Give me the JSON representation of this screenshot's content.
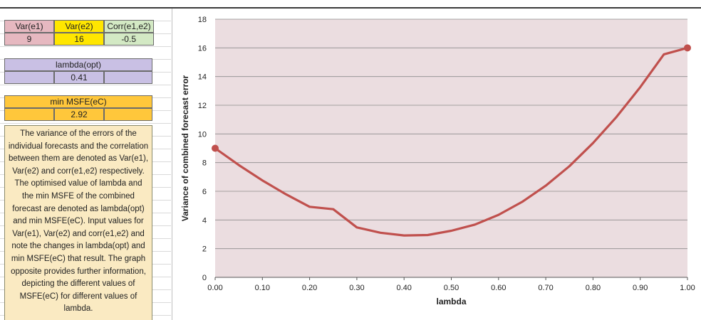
{
  "spreadsheet": {
    "var_e1": {
      "label": "Var(e1)",
      "value": "9"
    },
    "var_e2": {
      "label": "Var(e2)",
      "value": "16"
    },
    "corr": {
      "label": "Corr(e1,e2)",
      "value": "-0.5"
    },
    "lambda_opt": {
      "label": "lambda(opt)",
      "value": "0.41"
    },
    "min_msfe": {
      "label": "min MSFE(eC)",
      "value": "2.92"
    },
    "description": "The variance of the errors of the individual forecasts and the correlation between them are denoted as Var(e1), Var(e2) and corr(e1,e2) respectively. The optimised value of lambda and the min MSFE of the combined forecast are denoted as lambda(opt) and min MSFE(eC). Input values for Var(e1), Var(e2) and corr(e1,e2) and note the changes in lambda(opt) and min MSFE(eC) that result. The graph opposite provides further information, depicting the different values of MSFE(eC) for different values of lambda."
  },
  "colors": {
    "curve": "#c0504d",
    "plot_area": "#ebdde0",
    "pink": "#e6b8c0",
    "yellow": "#ffe600",
    "green": "#d3e9c4",
    "purple": "#c9c0e4",
    "orange": "#ffc73b",
    "note_bg": "#faeac2"
  },
  "chart_data": {
    "type": "line",
    "title": "",
    "xlabel": "lambda",
    "ylabel": "Variance of combined forecast error",
    "xlim": [
      0,
      1
    ],
    "ylim": [
      0,
      18
    ],
    "x_ticks": [
      "0.00",
      "0.10",
      "0.20",
      "0.30",
      "0.40",
      "0.50",
      "0.60",
      "0.70",
      "0.80",
      "0.90",
      "1.00"
    ],
    "y_ticks": [
      "0",
      "2",
      "4",
      "6",
      "8",
      "10",
      "12",
      "14",
      "16",
      "18"
    ],
    "grid": "horizontal",
    "x": [
      0,
      0.05,
      0.1,
      0.15,
      0.2,
      0.25,
      0.3,
      0.35,
      0.4,
      0.45,
      0.5,
      0.55,
      0.6,
      0.65,
      0.7,
      0.75,
      0.8,
      0.85,
      0.9,
      0.95,
      1.0
    ],
    "y": [
      9.0,
      7.83,
      6.76,
      5.79,
      4.92,
      4.75,
      3.48,
      3.11,
      2.92,
      2.95,
      3.25,
      3.68,
      4.36,
      5.26,
      6.39,
      7.75,
      9.36,
      11.19,
      13.26,
      15.55,
      16.0
    ],
    "endpoints": [
      {
        "x": 0,
        "y": 9
      },
      {
        "x": 1,
        "y": 16
      }
    ]
  }
}
